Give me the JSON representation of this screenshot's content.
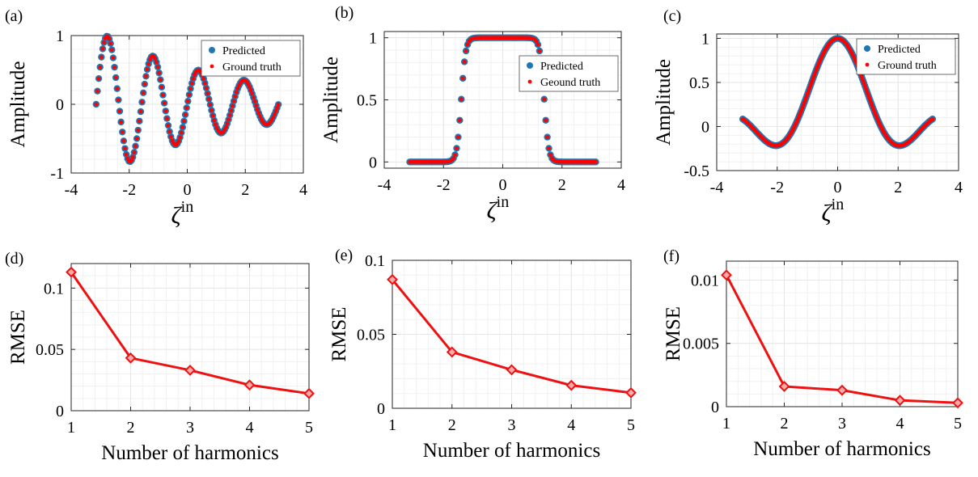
{
  "colors": {
    "predicted": "#1f77b4",
    "ground_truth": "#ff0000",
    "rmse_line": "#ee1111",
    "grid": "#e6e6e6",
    "axis": "#262626"
  },
  "chart_data": [
    {
      "id": "a",
      "panel_label": "(a)",
      "type": "scatter",
      "function": "decaying_sine",
      "xlabel_base": "ζ",
      "xlabel_sup": "in",
      "ylabel": "Amplitude",
      "xlim": [
        -4,
        4
      ],
      "ylim": [
        -1,
        1
      ],
      "xticks": [
        -4,
        -2,
        0,
        2,
        4
      ],
      "yticks": [
        -1,
        0,
        1
      ],
      "x_range": [
        -3.14,
        3.14
      ],
      "n_points": 140,
      "legend": [
        {
          "name": "Predicted",
          "marker": "circle",
          "color": "#1f77b4"
        },
        {
          "name": "Ground truth",
          "marker": "dot",
          "color": "#ff0000"
        }
      ]
    },
    {
      "id": "b",
      "panel_label": "(b)",
      "type": "scatter",
      "function": "smoothed_rect",
      "xlabel_base": "ζ",
      "xlabel_sup": "in",
      "ylabel": "Amplitude",
      "xlim": [
        -4,
        4
      ],
      "ylim": [
        -0.05,
        1.05
      ],
      "xticks": [
        -4,
        -2,
        0,
        2,
        4
      ],
      "yticks": [
        0,
        0.5,
        1
      ],
      "x_range": [
        -3.14,
        3.14
      ],
      "n_points": 120,
      "legend": [
        {
          "name": "Predicted",
          "marker": "circle",
          "color": "#1f77b4"
        },
        {
          "name": "Geound truth",
          "marker": "dot",
          "color": "#ff0000"
        }
      ]
    },
    {
      "id": "c",
      "panel_label": "(c)",
      "type": "scatter",
      "function": "sinc",
      "xlabel_base": "ζ",
      "xlabel_sup": "in",
      "ylabel": "Amplitude",
      "xlim": [
        -4,
        4
      ],
      "ylim": [
        -0.5,
        1.05
      ],
      "xticks": [
        -4,
        -2,
        0,
        2,
        4
      ],
      "yticks": [
        -0.5,
        0,
        0.5,
        1
      ],
      "x_range": [
        -3.14,
        3.14
      ],
      "n_points": 220,
      "legend": [
        {
          "name": "Predicted",
          "marker": "circle",
          "color": "#1f77b4"
        },
        {
          "name": "Ground truth",
          "marker": "dot",
          "color": "#ff0000"
        }
      ]
    },
    {
      "id": "d",
      "panel_label": "(d)",
      "type": "line",
      "xlabel": "Number of harmonics",
      "ylabel": "RMSE",
      "x": [
        1,
        2,
        3,
        4,
        5
      ],
      "values": [
        0.113,
        0.043,
        0.033,
        0.021,
        0.014
      ],
      "xlim": [
        1,
        5
      ],
      "ylim": [
        0,
        0.12
      ],
      "xticks": [
        1,
        2,
        3,
        4,
        5
      ],
      "yticks": [
        0,
        0.05,
        0.1
      ],
      "ytick_labels": [
        "0",
        "0.05",
        "0.1"
      ]
    },
    {
      "id": "e",
      "panel_label": "(e)",
      "type": "line",
      "xlabel": "Number of harmonics",
      "ylabel": "RMSE",
      "x": [
        1,
        2,
        3,
        4,
        5
      ],
      "values": [
        0.087,
        0.038,
        0.026,
        0.0155,
        0.0105
      ],
      "xlim": [
        1,
        5
      ],
      "ylim": [
        0,
        0.1
      ],
      "xticks": [
        1,
        2,
        3,
        4,
        5
      ],
      "yticks": [
        0,
        0.05,
        0.1
      ],
      "ytick_labels": [
        "0",
        "0.05",
        "0.1"
      ]
    },
    {
      "id": "f",
      "panel_label": "(f)",
      "type": "line",
      "xlabel": "Number of harmonics",
      "ylabel": "RMSE",
      "x": [
        1,
        2,
        3,
        4,
        5
      ],
      "values": [
        0.0104,
        0.0016,
        0.0013,
        0.0005,
        0.0003
      ],
      "xlim": [
        1,
        5
      ],
      "ylim": [
        0,
        0.0115
      ],
      "xticks": [
        1,
        2,
        3,
        4,
        5
      ],
      "yticks": [
        0,
        0.005,
        0.01
      ],
      "ytick_labels": [
        "0",
        "0.005",
        "0.01"
      ]
    }
  ]
}
